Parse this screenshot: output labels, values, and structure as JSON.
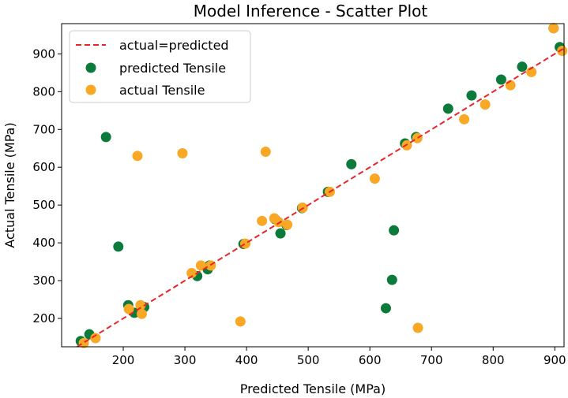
{
  "chart_data": {
    "type": "scatter",
    "title": "Model Inference - Scatter Plot",
    "xlabel": "Predicted Tensile (MPa)",
    "ylabel": "Actual Tensile (MPa)",
    "xlim": [
      100,
      915
    ],
    "ylim": [
      125,
      980
    ],
    "xticks": [
      200,
      300,
      400,
      500,
      600,
      700,
      800,
      900
    ],
    "yticks": [
      200,
      300,
      400,
      500,
      600,
      700,
      800,
      900
    ],
    "legend_position": "top-left",
    "reference_line": {
      "name": "actual=predicted",
      "color": "#e8262a",
      "style": "dashed"
    },
    "series": [
      {
        "name": "predicted Tensile",
        "color": "#0b7a3b",
        "points": [
          [
            131,
            140
          ],
          [
            145,
            158
          ],
          [
            172,
            680
          ],
          [
            192,
            390
          ],
          [
            208,
            235
          ],
          [
            218,
            215
          ],
          [
            234,
            230
          ],
          [
            320,
            312
          ],
          [
            337,
            330
          ],
          [
            340,
            340
          ],
          [
            395,
            397
          ],
          [
            446,
            463
          ],
          [
            455,
            425
          ],
          [
            465,
            447
          ],
          [
            490,
            492
          ],
          [
            532,
            535
          ],
          [
            570,
            608
          ],
          [
            626,
            227
          ],
          [
            636,
            302
          ],
          [
            639,
            433
          ],
          [
            657,
            663
          ],
          [
            675,
            680
          ],
          [
            727,
            755
          ],
          [
            765,
            790
          ],
          [
            813,
            832
          ],
          [
            847,
            866
          ],
          [
            898,
            968
          ],
          [
            908,
            918
          ]
        ]
      },
      {
        "name": "actual Tensile",
        "color": "#f9a825",
        "points": [
          [
            136,
            135
          ],
          [
            155,
            148
          ],
          [
            209,
            225
          ],
          [
            223,
            630
          ],
          [
            228,
            235
          ],
          [
            230,
            212
          ],
          [
            296,
            637
          ],
          [
            311,
            320
          ],
          [
            326,
            340
          ],
          [
            342,
            340
          ],
          [
            390,
            192
          ],
          [
            398,
            398
          ],
          [
            425,
            458
          ],
          [
            431,
            641
          ],
          [
            445,
            465
          ],
          [
            452,
            455
          ],
          [
            466,
            448
          ],
          [
            491,
            493
          ],
          [
            535,
            535
          ],
          [
            608,
            570
          ],
          [
            660,
            658
          ],
          [
            677,
            677
          ],
          [
            678,
            175
          ],
          [
            753,
            727
          ],
          [
            787,
            766
          ],
          [
            828,
            817
          ],
          [
            862,
            852
          ],
          [
            898,
            968
          ],
          [
            912,
            908
          ]
        ]
      }
    ]
  }
}
